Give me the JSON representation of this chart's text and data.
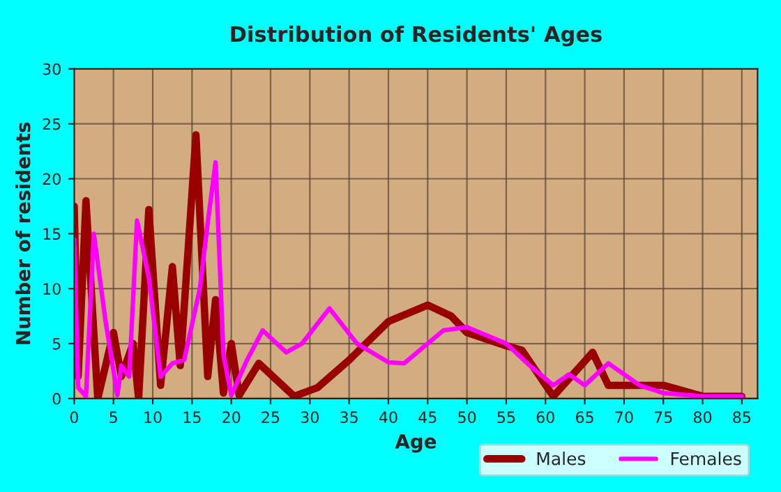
{
  "chart_data": {
    "type": "line",
    "title": "Distribution of Residents' Ages",
    "xlabel": "Age",
    "ylabel": "Number of residents",
    "xlim": [
      0,
      87
    ],
    "xticks": [
      0,
      5,
      10,
      15,
      20,
      25,
      30,
      35,
      40,
      45,
      50,
      55,
      60,
      65,
      70,
      75,
      80,
      85
    ],
    "ylim": [
      0,
      30
    ],
    "yticks": [
      0,
      5,
      10,
      15,
      20,
      25,
      30
    ],
    "grid": true,
    "legend": "bottom right",
    "marker": "none",
    "line_style": "solid",
    "series": [
      {
        "name": "Males",
        "color": "#990000",
        "x": [
          0,
          0.5,
          1.5,
          3,
          5,
          6,
          7.5,
          8.2,
          9.5,
          11,
          12.5,
          13.5,
          15.5,
          17,
          18,
          19,
          20,
          21,
          23.5,
          28,
          31,
          35,
          40,
          45,
          48,
          50,
          55,
          57,
          61,
          66,
          68,
          71,
          75,
          80,
          85
        ],
        "values": [
          17.5,
          2,
          18,
          0,
          6,
          2,
          5,
          0,
          17.2,
          1.2,
          12,
          3,
          24,
          2,
          9,
          0.5,
          5,
          0.3,
          3.2,
          0.2,
          1,
          3.5,
          7,
          8.5,
          7.5,
          6,
          4.8,
          4.4,
          0.2,
          4.2,
          1.2,
          1.2,
          1.2,
          0.2,
          0.2
        ]
      },
      {
        "name": "Females",
        "color": "#ff00ff",
        "x": [
          0,
          0.5,
          1.5,
          2.5,
          4,
          5.5,
          6,
          7,
          8,
          9.5,
          11,
          12.5,
          14,
          16,
          17,
          18,
          19,
          20,
          22,
          24,
          27,
          29,
          32.5,
          36,
          40,
          42,
          47,
          50,
          55,
          58,
          61,
          63,
          65,
          68,
          72,
          75,
          80,
          85
        ],
        "values": [
          14.5,
          1,
          0.2,
          15,
          7,
          0.3,
          3,
          2,
          16.2,
          11,
          2,
          3.2,
          3.5,
          10,
          16,
          21.5,
          4,
          0.3,
          3.5,
          6.2,
          4.2,
          5,
          8.2,
          5,
          3.3,
          3.2,
          6.2,
          6.5,
          5,
          3,
          1.2,
          2.2,
          1.2,
          3.2,
          1.2,
          0.5,
          0.2,
          0.2
        ]
      }
    ]
  }
}
